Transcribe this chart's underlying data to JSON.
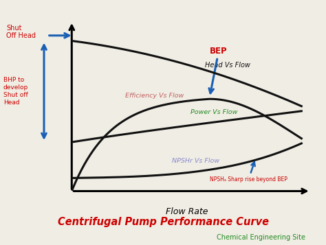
{
  "title": "Centrifugal Pump Performance Curve",
  "subtitle": "Chemical Engineering Site",
  "title_color": "#cc0000",
  "subtitle_color": "#228B22",
  "xlabel": "Flow Rate",
  "bg_color": "#f0ede4",
  "plot_bg": "#f0ede4",
  "curve_color": "#111111",
  "curve_lw": 2.2,
  "label_head": "Head Vs Flow",
  "label_eff": "Efficiency Vs Flow",
  "label_power": "Power Vs Flow",
  "label_npsh": "NPSHr Vs Flow",
  "label_head_color": "#111111",
  "label_eff_color": "#c06060",
  "label_power_color": "#228B22",
  "label_npsh_color": "#8888cc",
  "annotation_bep": "BEP",
  "annotation_bep_color": "#cc0000",
  "annotation_npsha": "NPSHₐ Sharp rise beyond BEP",
  "annotation_npsha_color": "#cc0000",
  "annotation_shutoff": "Shut\nOff Head",
  "annotation_shutoff_color": "#cc0000",
  "annotation_bhp": "BHP to\ndevelop\nShut off\nHead",
  "annotation_bhp_color": "#cc0000",
  "arrow_color": "#1a5fb4"
}
